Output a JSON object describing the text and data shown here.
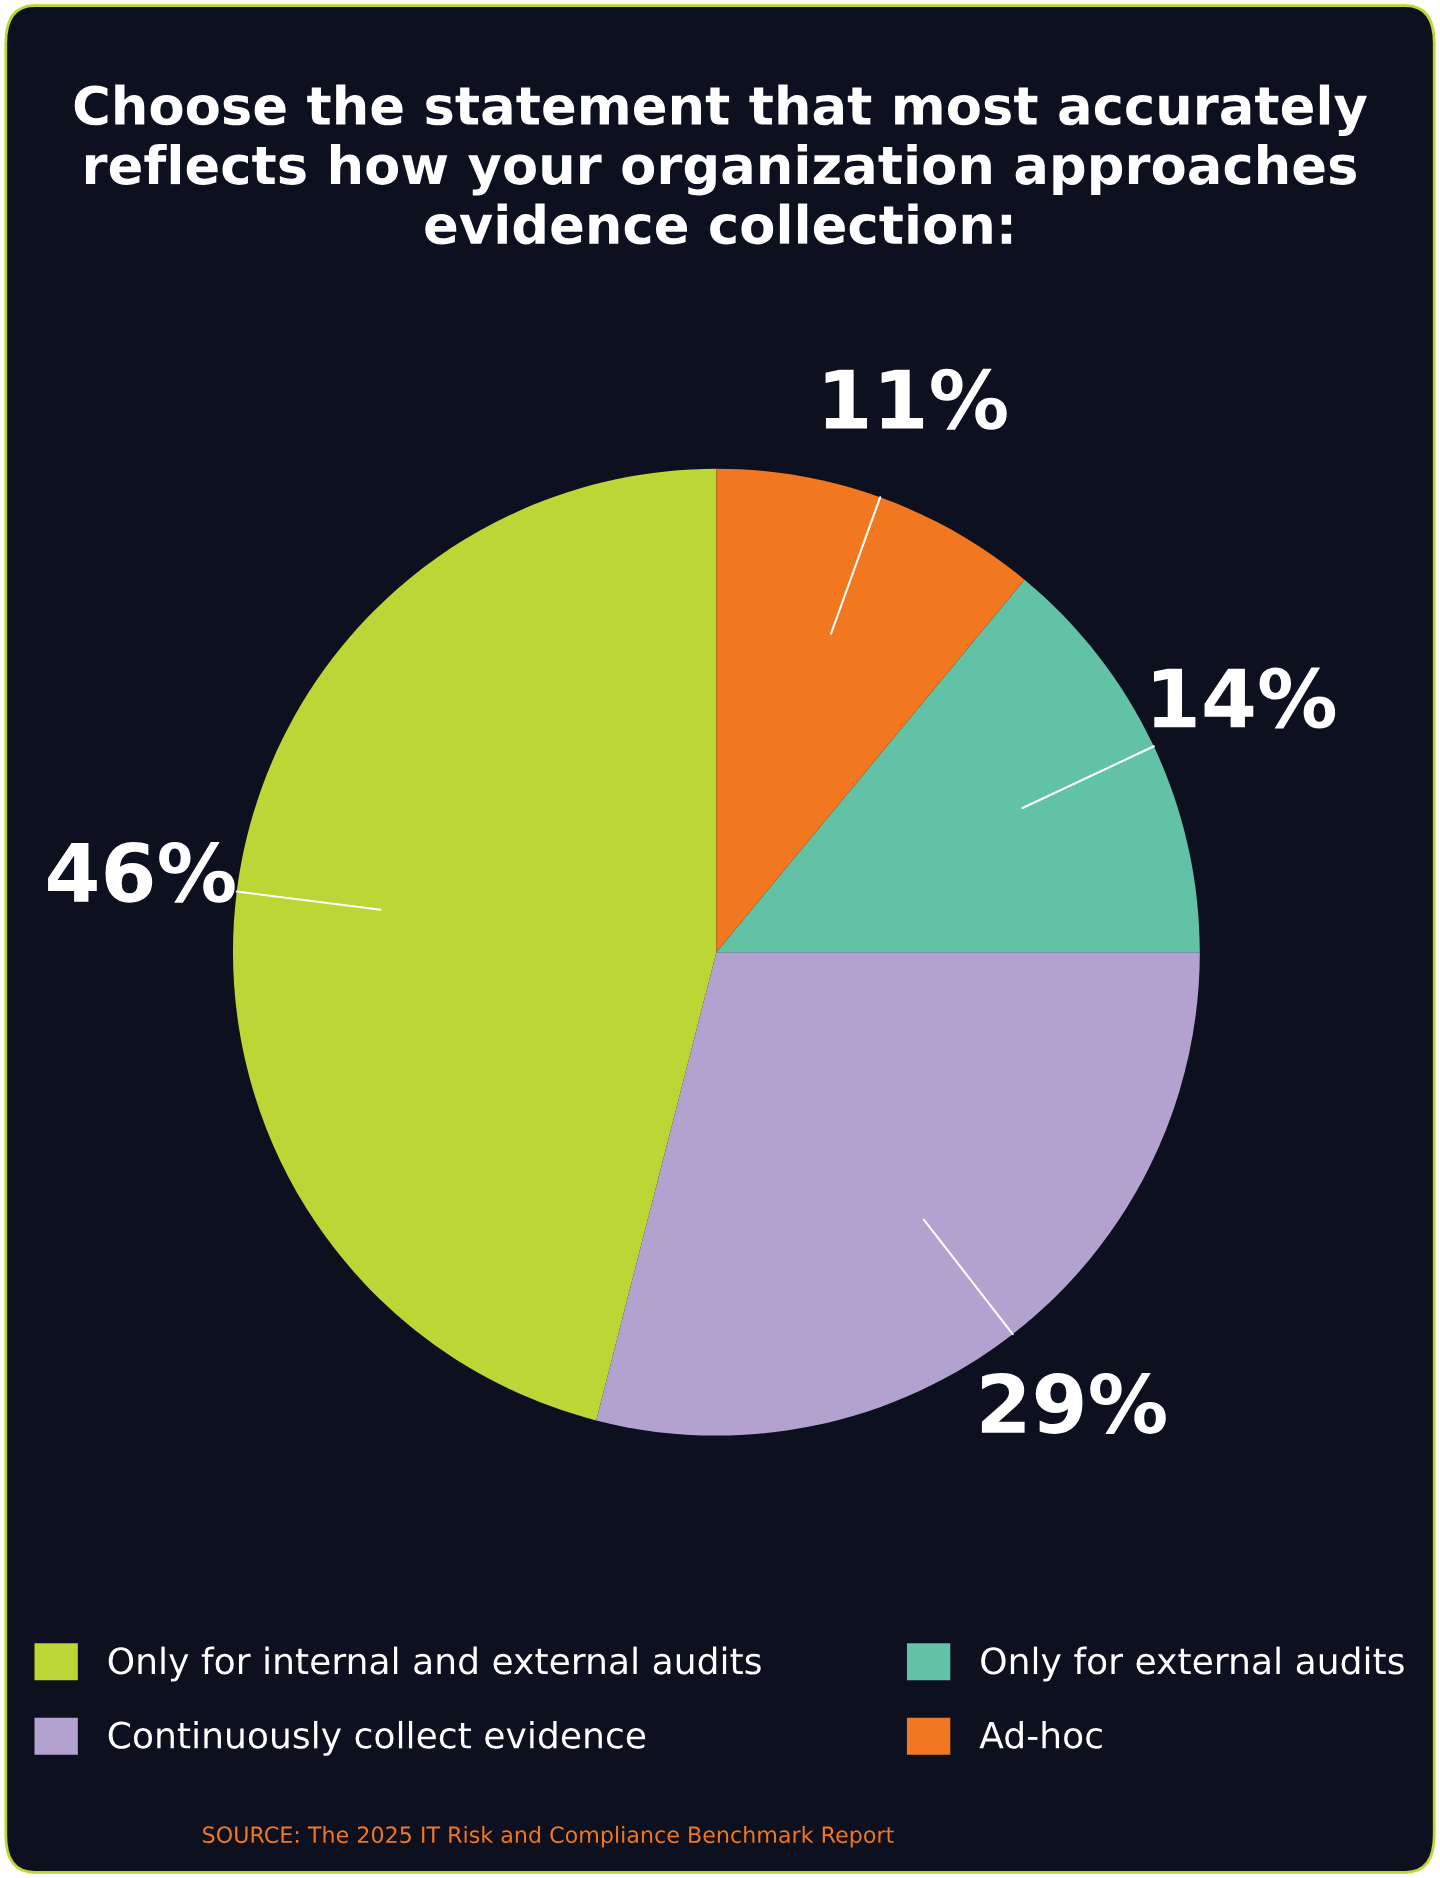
{
  "chart_data": {
    "type": "pie",
    "title": "Choose the statement that most accurately reflects how your organization approaches evidence collection:",
    "categories": [
      "Only for internal and external audits",
      "Continuously collect evidence",
      "Only for external audits",
      "Ad-hoc"
    ],
    "values": [
      46,
      29,
      14,
      11
    ],
    "colors": [
      "#bcd635",
      "#b3a2cf",
      "#62c2a6",
      "#f27721"
    ],
    "value_labels": [
      "46%",
      "29%",
      "14%",
      "11%"
    ],
    "legend": "bottom",
    "annotations": [
      "SOURCE: The 2025 IT Risk and Compliance Benchmark Report"
    ]
  }
}
